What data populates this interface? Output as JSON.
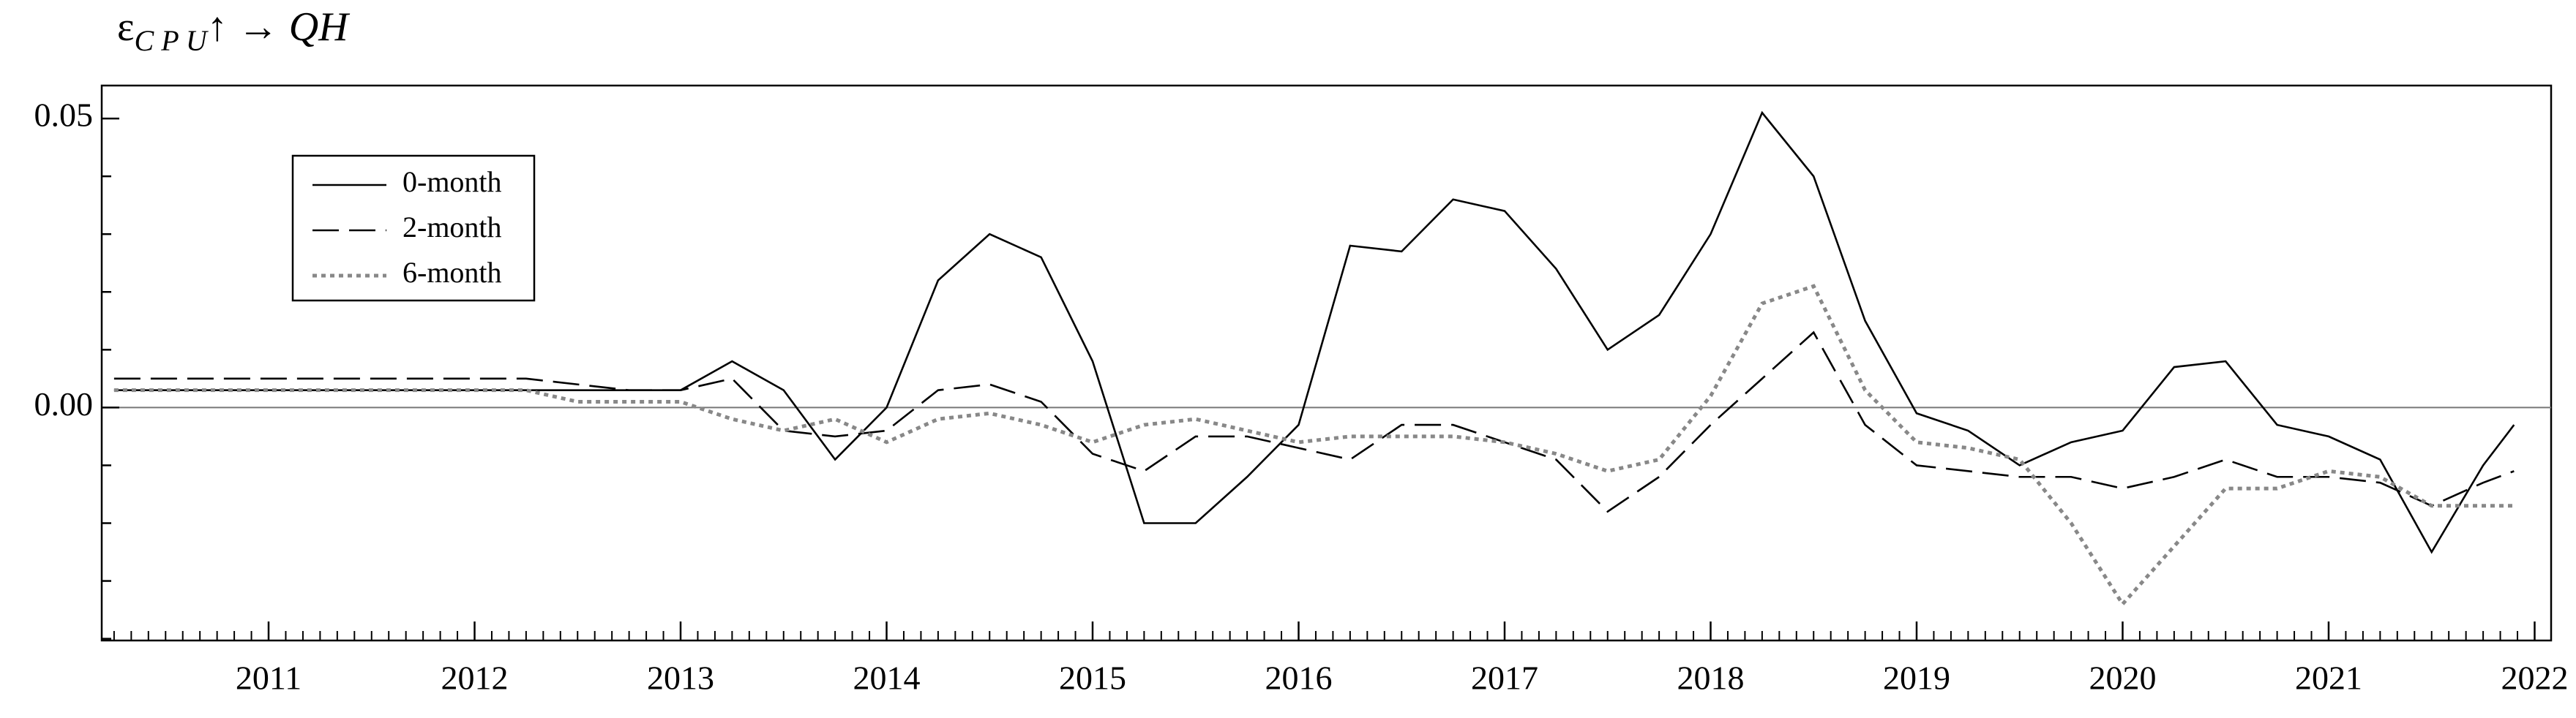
{
  "chart_data": {
    "type": "line",
    "title": [
      "ε",
      "C P U",
      "↑ → ",
      "QH"
    ],
    "x": [
      2010.25,
      2010.5,
      2010.75,
      2011,
      2011.25,
      2011.5,
      2011.75,
      2012,
      2012.25,
      2012.5,
      2012.75,
      2013,
      2013.25,
      2013.5,
      2013.75,
      2014,
      2014.25,
      2014.5,
      2014.75,
      2015,
      2015.25,
      2015.5,
      2015.75,
      2016,
      2016.25,
      2016.5,
      2016.75,
      2017,
      2017.25,
      2017.5,
      2017.75,
      2018,
      2018.25,
      2018.5,
      2018.75,
      2019,
      2019.25,
      2019.5,
      2019.75,
      2020,
      2020.25,
      2020.5,
      2020.75,
      2021,
      2021.25,
      2021.5,
      2021.75,
      2021.9
    ],
    "series": [
      {
        "name": "0-month",
        "color": "#000000",
        "dash": "solid",
        "values": [
          0.003,
          0.003,
          0.003,
          0.003,
          0.003,
          0.003,
          0.003,
          0.003,
          0.003,
          0.003,
          0.003,
          0.003,
          0.008,
          0.003,
          -0.009,
          0.0,
          0.022,
          0.03,
          0.026,
          0.008,
          -0.02,
          -0.02,
          -0.012,
          -0.003,
          0.028,
          0.027,
          0.036,
          0.034,
          0.024,
          0.01,
          0.016,
          0.03,
          0.051,
          0.04,
          0.015,
          -0.001,
          -0.004,
          -0.01,
          -0.006,
          -0.004,
          0.007,
          0.008,
          -0.003,
          -0.005,
          -0.009,
          -0.025,
          -0.01,
          -0.003
        ]
      },
      {
        "name": "2-month",
        "color": "#000000",
        "dash": "dashed",
        "values": [
          0.005,
          0.005,
          0.005,
          0.005,
          0.005,
          0.005,
          0.005,
          0.005,
          0.005,
          0.004,
          0.003,
          0.003,
          0.005,
          -0.004,
          -0.005,
          -0.004,
          0.003,
          0.004,
          0.001,
          -0.008,
          -0.011,
          -0.005,
          -0.005,
          -0.007,
          -0.009,
          -0.003,
          -0.003,
          -0.006,
          -0.009,
          -0.018,
          -0.012,
          -0.003,
          0.005,
          0.013,
          -0.003,
          -0.01,
          -0.011,
          -0.012,
          -0.012,
          -0.014,
          -0.012,
          -0.009,
          -0.012,
          -0.012,
          -0.013,
          -0.017,
          -0.013,
          -0.011
        ]
      },
      {
        "name": "6-month",
        "color": "#888888",
        "dash": "dotted",
        "values": [
          0.003,
          0.003,
          0.003,
          0.003,
          0.003,
          0.003,
          0.003,
          0.003,
          0.003,
          0.001,
          0.001,
          0.001,
          -0.002,
          -0.004,
          -0.002,
          -0.006,
          -0.002,
          -0.001,
          -0.003,
          -0.006,
          -0.003,
          -0.002,
          -0.004,
          -0.006,
          -0.005,
          -0.005,
          -0.005,
          -0.006,
          -0.008,
          -0.011,
          -0.009,
          0.002,
          0.018,
          0.021,
          0.003,
          -0.006,
          -0.007,
          -0.009,
          -0.02,
          -0.034,
          -0.024,
          -0.014,
          -0.014,
          -0.011,
          -0.012,
          -0.017,
          -0.017,
          -0.017
        ]
      }
    ],
    "xlim": [
      2010.19,
      2022.08
    ],
    "xticks": [
      2011,
      2012,
      2013,
      2014,
      2015,
      2016,
      2017,
      2018,
      2019,
      2020,
      2021,
      2022
    ],
    "ylim": [
      -0.0403,
      0.0557
    ],
    "yticks": [
      {
        "value": 0,
        "label": "0.00"
      },
      {
        "value": 0.05,
        "label": "0.05"
      }
    ],
    "yminorticks": [
      -0.04,
      -0.03,
      -0.02,
      -0.01,
      0.01,
      0.02,
      0.03,
      0.04
    ],
    "legend": "upper-left"
  }
}
